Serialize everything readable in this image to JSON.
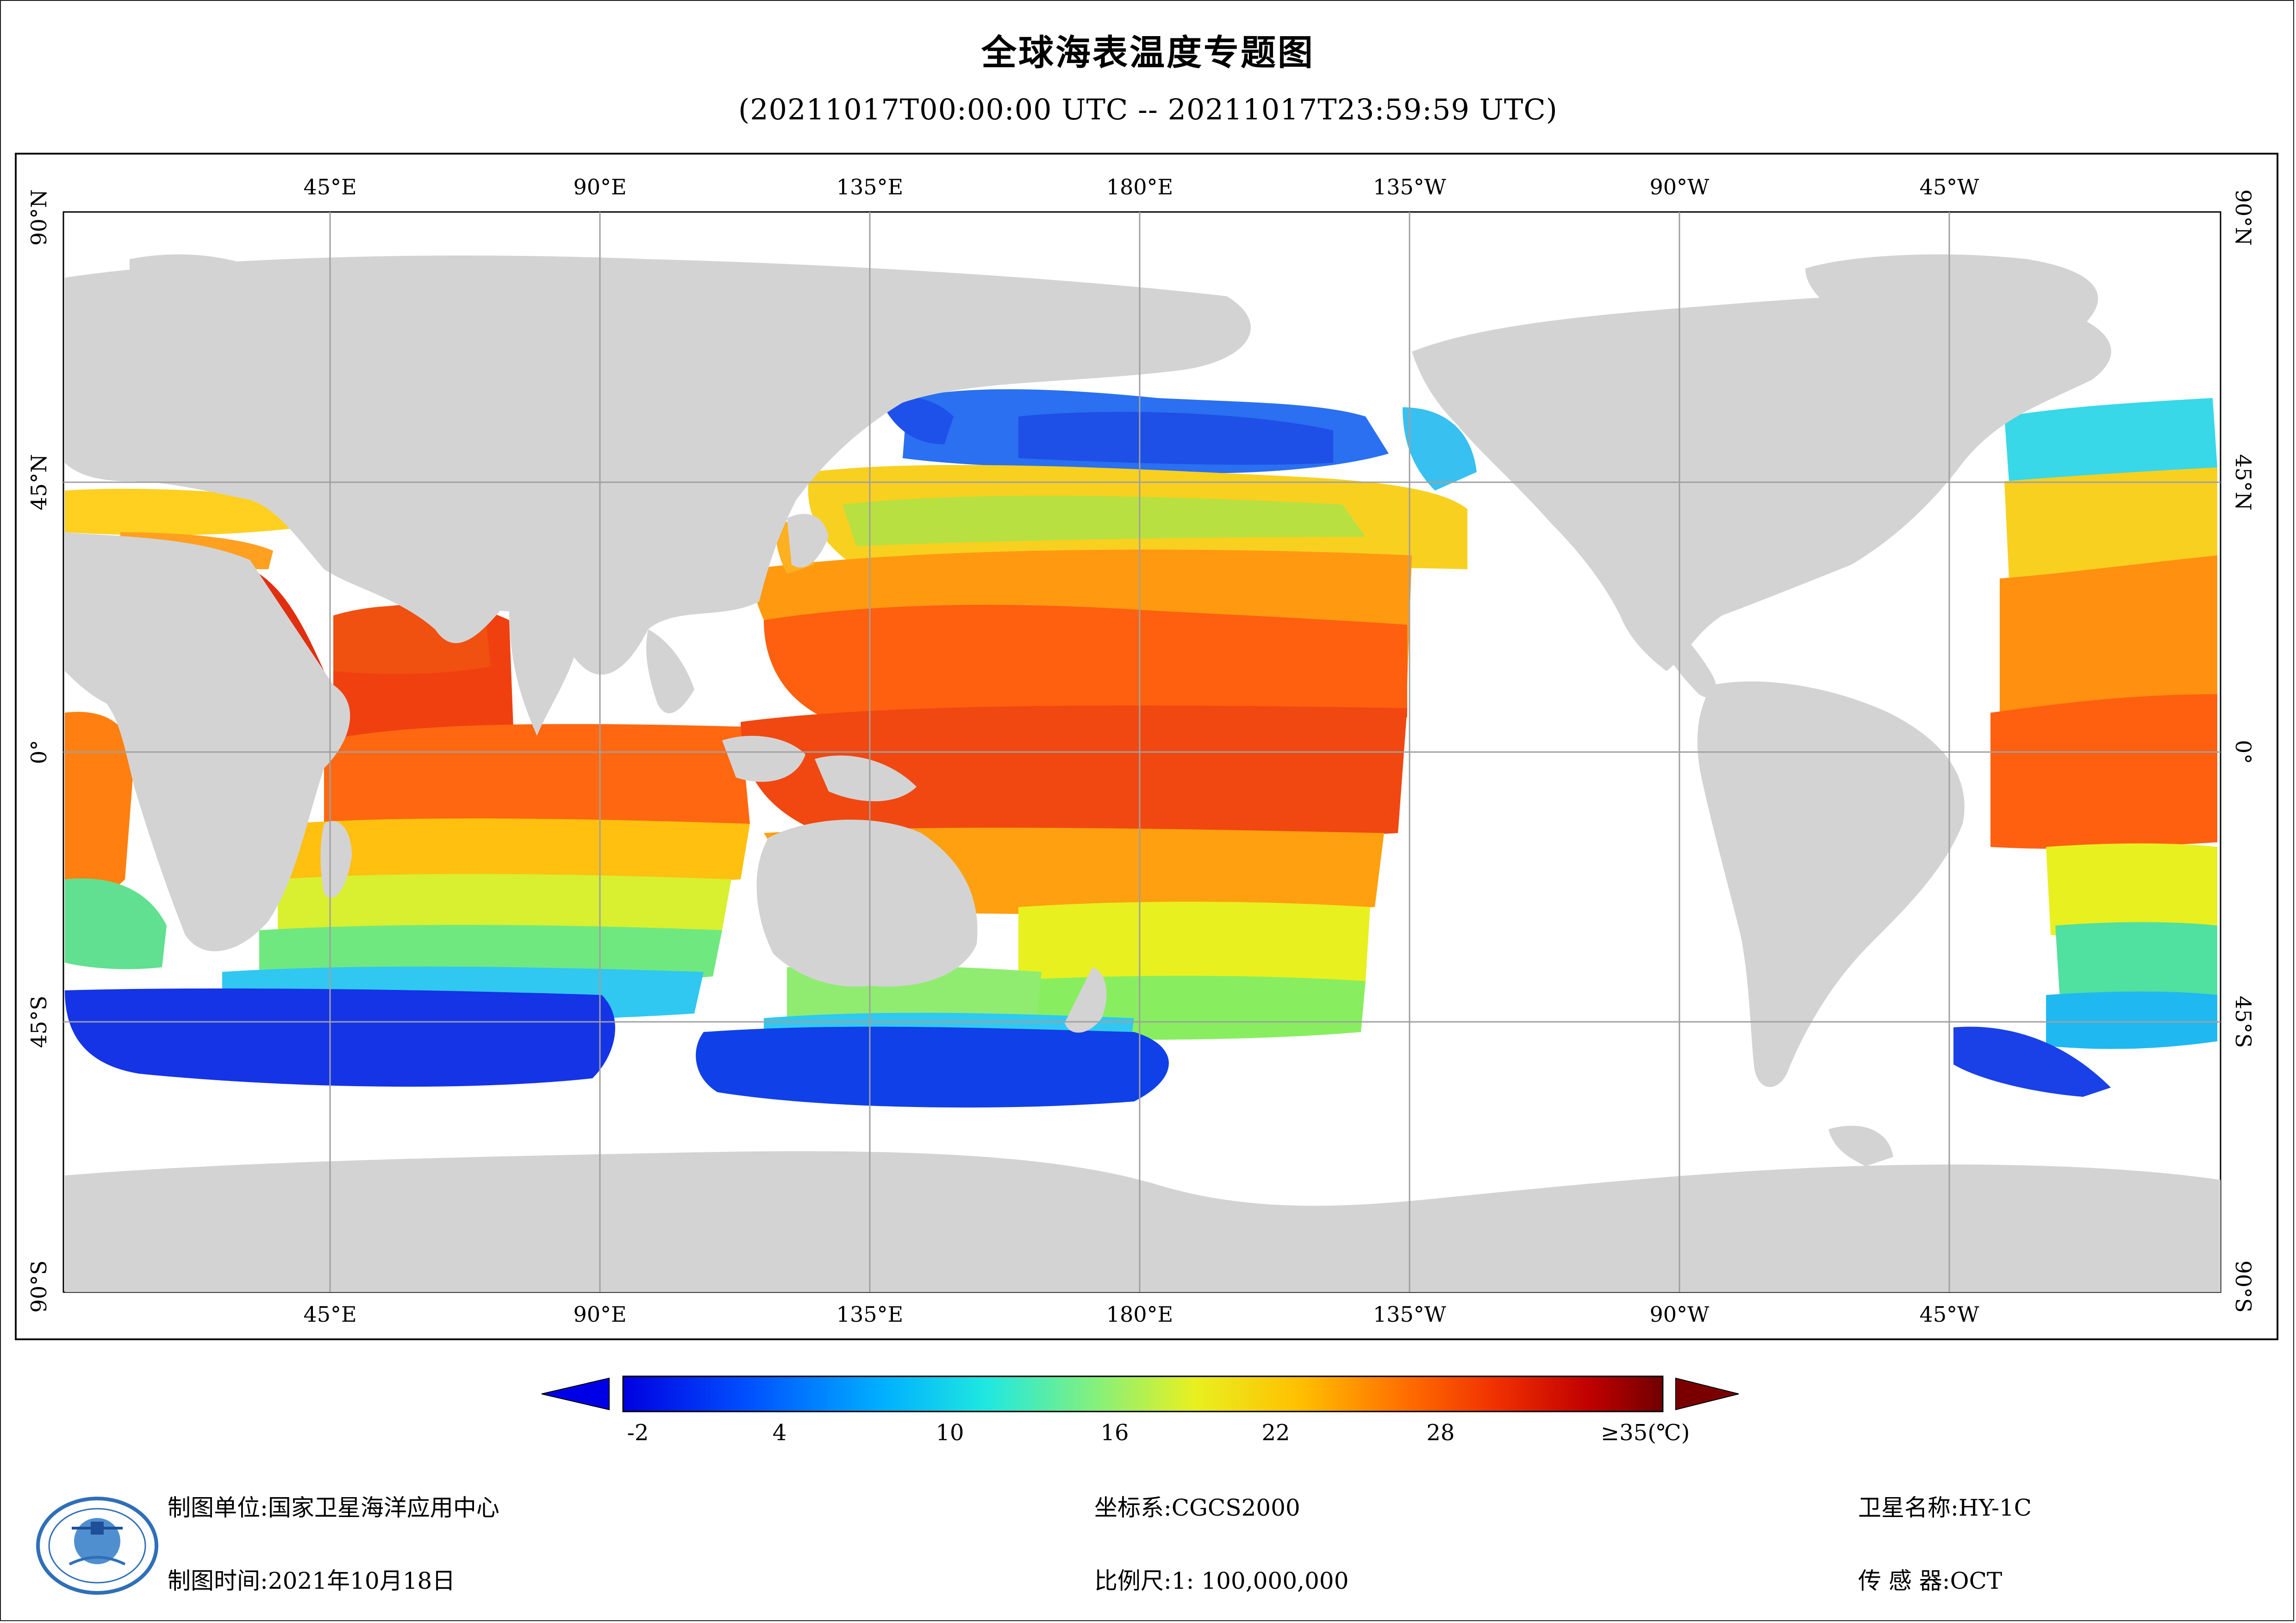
{
  "title": "全球海表温度专题图",
  "subtitle": "(20211017T00:00:00 UTC -- 20211017T23:59:59 UTC)",
  "map": {
    "lon_labels": [
      "45°E",
      "90°E",
      "135°E",
      "180°E",
      "135°W",
      "90°W",
      "45°W"
    ],
    "lat_labels_left": [
      "90°N",
      "45°N",
      "0°",
      "45°S",
      "90°S"
    ],
    "lat_labels_right": [
      "90°N",
      "45°N",
      "0°",
      "45°S",
      "90°S"
    ],
    "colors": {
      "land": "#d3d3d4",
      "ocean_nodata": "#ffffff",
      "graticule": "#a0a0a0"
    }
  },
  "colorbar": {
    "ticks": [
      "-2",
      "4",
      "10",
      "16",
      "22",
      "28"
    ],
    "max_label": "≥35(℃)",
    "min_value": -4,
    "max_value": 35,
    "colors": [
      "#0000e0",
      "#0050ff",
      "#00b0ff",
      "#20e8e0",
      "#80f080",
      "#e8f020",
      "#ffc000",
      "#ff7000",
      "#f03000",
      "#c00000",
      "#700000"
    ]
  },
  "footer": {
    "unit_label": "制图单位:",
    "unit_value": "国家卫星海洋应用中心",
    "time_label": "制图时间:",
    "time_value": "2021年10月18日",
    "crs_label": "坐标系:",
    "crs_value": "CGCS2000",
    "scale_label": "比例尺:",
    "scale_value": "1: 100,000,000",
    "satellite_label": "卫星名称:",
    "satellite_value": "HY-1C",
    "sensor_label": "传 感 器:",
    "sensor_value": "OCT"
  }
}
